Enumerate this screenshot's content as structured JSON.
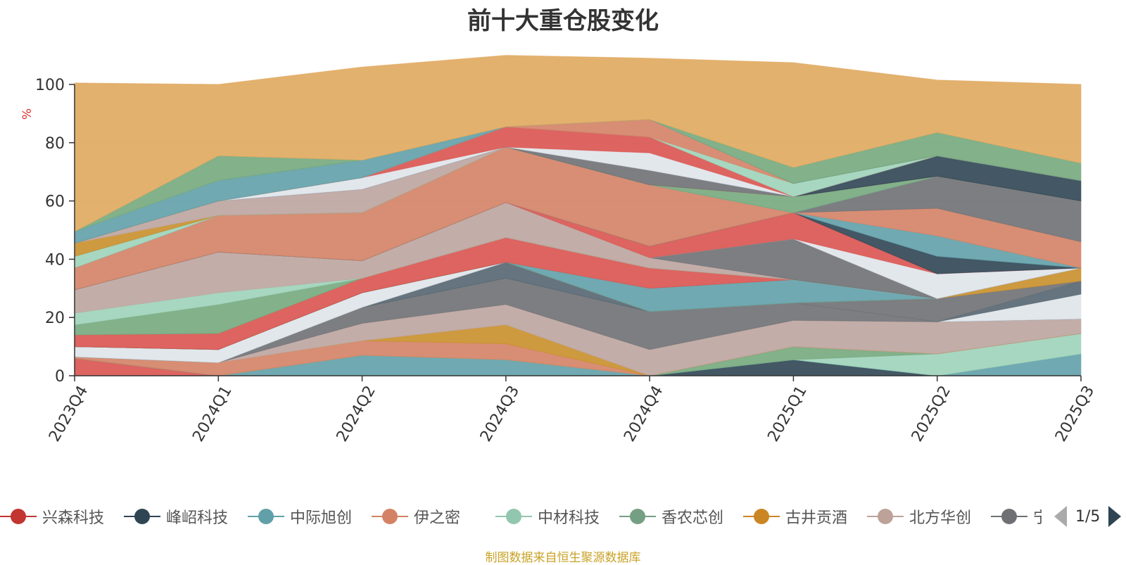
{
  "chart_data": {
    "type": "area",
    "stacked": true,
    "title": "前十大重仓股变化",
    "ylabel": "%",
    "ylim": [
      0,
      100
    ],
    "yticks": [
      0,
      20,
      40,
      60,
      80,
      100
    ],
    "categories": [
      "2023Q4",
      "2024Q1",
      "2024Q2",
      "2024Q3",
      "2024Q4",
      "2025Q1",
      "2025Q2",
      "2025Q3"
    ],
    "series": [
      {
        "name": "",
        "color": "#d9534f",
        "values": [
          6,
          0,
          0,
          0,
          0,
          0,
          0,
          0
        ]
      },
      {
        "name": "",
        "color": "#2f4554",
        "values": [
          0,
          0,
          0,
          0,
          0,
          5.5,
          0,
          0
        ]
      },
      {
        "name": "",
        "color": "#61a0a8",
        "values": [
          0,
          0,
          7,
          5.5,
          0,
          0,
          0,
          7.5
        ]
      },
      {
        "name": "",
        "color": "#9dd3b9",
        "values": [
          0,
          0,
          0,
          0,
          0,
          0,
          7.5,
          7
        ]
      },
      {
        "name": "",
        "color": "#74a97d",
        "values": [
          0,
          0,
          0,
          0,
          0,
          4.5,
          0,
          0
        ]
      },
      {
        "name": "",
        "color": "#d48265",
        "values": [
          0.5,
          4.5,
          5,
          5.5,
          0,
          0,
          0,
          0
        ]
      },
      {
        "name": "",
        "color": "#c98f2a",
        "values": [
          0,
          0,
          0,
          6.5,
          0,
          0,
          0,
          0
        ]
      },
      {
        "name": "",
        "color": "#bca49e",
        "values": [
          0,
          0,
          6,
          7,
          9,
          9,
          11,
          5
        ]
      },
      {
        "name": "",
        "color": "#6e7074",
        "values": [
          0,
          0,
          5.5,
          9,
          13,
          6,
          0,
          0
        ]
      },
      {
        "name": "",
        "color": "#546570",
        "values": [
          0,
          0,
          0,
          5.5,
          0,
          0,
          0,
          0
        ]
      },
      {
        "name": "",
        "color": "#dfe4ea",
        "values": [
          3.5,
          4.5,
          5,
          0,
          0,
          0,
          0,
          8.5
        ]
      },
      {
        "name": "",
        "color": "#546570",
        "values": [
          0,
          0,
          0,
          0,
          0,
          0,
          0,
          4.5
        ]
      },
      {
        "name": "",
        "color": "#6e7074",
        "values": [
          0,
          0,
          0,
          0,
          0,
          0,
          8,
          0
        ]
      },
      {
        "name": "",
        "color": "#c98f2a",
        "values": [
          0,
          0,
          0,
          0,
          0,
          0,
          0,
          4.5
        ]
      },
      {
        "name": "",
        "color": "#61a0a8",
        "values": [
          0,
          0,
          0,
          0,
          8,
          8,
          0,
          0
        ]
      },
      {
        "name": "",
        "color": "#d9534f",
        "values": [
          4,
          5.5,
          5,
          8.5,
          7,
          0,
          0,
          0
        ]
      },
      {
        "name": "",
        "color": "#74a97d",
        "values": [
          3.5,
          10,
          0,
          0,
          0,
          0,
          0,
          0
        ]
      },
      {
        "name": "",
        "color": "#9dd3b9",
        "values": [
          4,
          4,
          0,
          0,
          0,
          0,
          0,
          0
        ]
      },
      {
        "name": "",
        "color": "#bca49e",
        "values": [
          8,
          14,
          6,
          12,
          3.5,
          0,
          0,
          0
        ]
      },
      {
        "name": "",
        "color": "#6e7074",
        "values": [
          0,
          0,
          0,
          0,
          0,
          14,
          0,
          0
        ]
      },
      {
        "name": "",
        "color": "#dfe4ea",
        "values": [
          0,
          0,
          0,
          0,
          0,
          0,
          8.5,
          0
        ]
      },
      {
        "name": "",
        "color": "#d9534f",
        "values": [
          0,
          0,
          0,
          0,
          4,
          9,
          0,
          0
        ]
      },
      {
        "name": "",
        "color": "#2f4554",
        "values": [
          0,
          0,
          0,
          0,
          0,
          0,
          6,
          0
        ]
      },
      {
        "name": "",
        "color": "#61a0a8",
        "values": [
          0,
          0,
          0,
          0,
          0,
          0,
          7,
          0
        ]
      },
      {
        "name": "",
        "color": "#d48265",
        "values": [
          7.5,
          12.5,
          16.5,
          19,
          21,
          0,
          9.5,
          9
        ]
      },
      {
        "name": "",
        "color": "#6e7074",
        "values": [
          0,
          0,
          0,
          0,
          0,
          0,
          11,
          14
        ]
      },
      {
        "name": "",
        "color": "#9dd3b9",
        "values": [
          4,
          0,
          0,
          0,
          0,
          0,
          0,
          0
        ]
      },
      {
        "name": "",
        "color": "#74a97d",
        "values": [
          0,
          0,
          0,
          0,
          0,
          5.5,
          0,
          0
        ]
      },
      {
        "name": "",
        "color": "#c98f2a",
        "values": [
          4.5,
          0,
          0,
          0,
          0,
          0,
          0,
          0
        ]
      },
      {
        "name": "",
        "color": "#bca49e",
        "values": [
          0,
          5,
          8,
          0,
          0,
          0,
          0,
          0
        ]
      },
      {
        "name": "",
        "color": "#6e7074",
        "values": [
          0,
          0,
          0,
          0,
          5,
          0,
          0,
          0
        ]
      },
      {
        "name": "",
        "color": "#2f4554",
        "values": [
          0,
          0,
          0,
          0,
          0,
          0,
          7,
          7
        ]
      },
      {
        "name": "",
        "color": "#dfe4ea",
        "values": [
          0,
          0,
          4,
          0,
          6,
          0,
          0,
          0
        ]
      },
      {
        "name": "",
        "color": "#d9534f",
        "values": [
          0,
          0,
          0,
          7,
          5.5,
          0,
          0,
          0
        ]
      },
      {
        "name": "",
        "color": "#9dd3b9",
        "values": [
          0,
          0,
          0,
          0,
          0,
          4.5,
          0,
          0
        ]
      },
      {
        "name": "",
        "color": "#d48265",
        "values": [
          0,
          0,
          0,
          0,
          6,
          0,
          0,
          0
        ]
      },
      {
        "name": "",
        "color": "#61a0a8",
        "values": [
          4,
          7,
          6,
          0,
          0,
          0,
          0,
          0
        ]
      },
      {
        "name": "",
        "color": "#74a97d",
        "values": [
          0,
          8.5,
          0,
          0,
          0,
          5.5,
          8,
          6
        ]
      },
      {
        "name": "",
        "color": "#e0a95e",
        "values": [
          51,
          24.5,
          32,
          24.5,
          21,
          36,
          18,
          27
        ]
      }
    ]
  },
  "legend": {
    "items": [
      {
        "label": "兴森科技",
        "color": "#c23531"
      },
      {
        "label": "峰岹科技",
        "color": "#2f4554"
      },
      {
        "label": "中际旭创",
        "color": "#61a0a8"
      },
      {
        "label": "伊之密",
        "color": "#d48265"
      },
      {
        "label": "中材科技",
        "color": "#91c7ae"
      },
      {
        "label": "香农芯创",
        "color": "#749f83"
      },
      {
        "label": "古井贡酒",
        "color": "#ca8622"
      },
      {
        "label": "北方华创",
        "color": "#bda29a"
      },
      {
        "label": "宁德时代",
        "color": "#6e7074"
      }
    ],
    "page_text": "1/5"
  },
  "source_note": "制图数据来自恒生聚源数据库"
}
